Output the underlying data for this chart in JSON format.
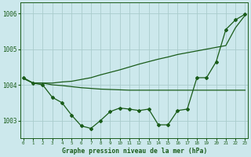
{
  "title": "Graphe pression niveau de la mer (hPa)",
  "bg_color": "#cce8ec",
  "grid_color": "#aacccc",
  "line_color": "#1a5c1a",
  "x_values": [
    0,
    1,
    2,
    3,
    4,
    5,
    6,
    7,
    8,
    9,
    10,
    11,
    12,
    13,
    14,
    15,
    16,
    17,
    18,
    19,
    20,
    21,
    22,
    23
  ],
  "series1": [
    1004.2,
    1004.05,
    1004.0,
    1003.65,
    1003.5,
    1003.15,
    1002.85,
    1002.78,
    1003.0,
    1003.25,
    1003.35,
    1003.32,
    1003.28,
    1003.32,
    1002.88,
    1002.88,
    1003.28,
    1003.32,
    1004.2,
    1004.2,
    1004.65,
    1005.55,
    1005.82,
    1005.98
  ],
  "series2": [
    1004.18,
    1004.05,
    1004.05,
    1004.05,
    1004.08,
    1004.1,
    1004.15,
    1004.2,
    1004.28,
    1004.35,
    1004.42,
    1004.5,
    1004.58,
    1004.65,
    1004.72,
    1004.78,
    1004.85,
    1004.9,
    1004.95,
    1005.0,
    1005.05,
    1005.1,
    1005.6,
    1005.95
  ],
  "series3": [
    1004.18,
    1004.05,
    1004.05,
    1004.0,
    1003.98,
    1003.95,
    1003.92,
    1003.9,
    1003.88,
    1003.87,
    1003.86,
    1003.85,
    1003.85,
    1003.85,
    1003.85,
    1003.85,
    1003.85,
    1003.85,
    1003.85,
    1003.85,
    1003.85,
    1003.85,
    1003.85,
    1003.85
  ],
  "ylim": [
    1002.5,
    1006.3
  ],
  "yticks": [
    1003,
    1004,
    1005,
    1006
  ],
  "xlim": [
    -0.3,
    23.3
  ]
}
